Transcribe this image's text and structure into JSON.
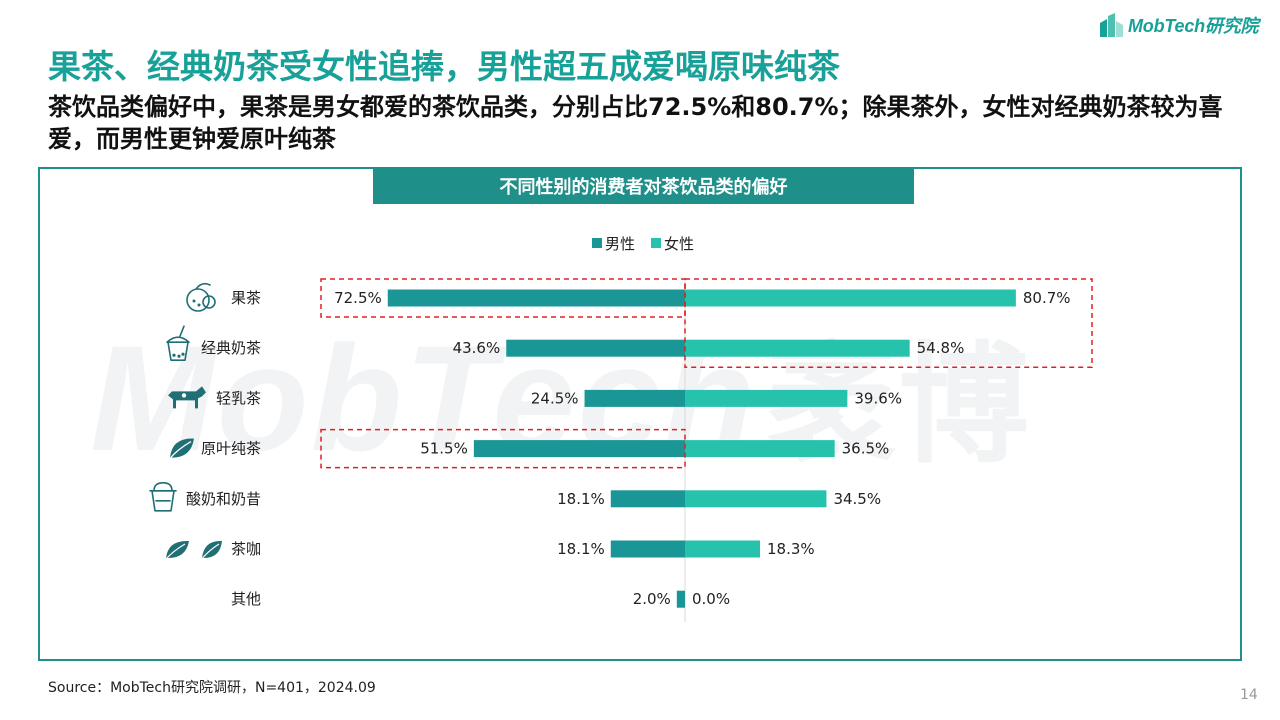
{
  "brand": {
    "logo_text": "MobTech研究院",
    "watermark_latin": "MobTech",
    "watermark_cn": "袤博"
  },
  "title": "果茶、经典奶茶受女性追捧，男性超五成爱喝原味纯茶",
  "subtitle": "茶饮品类偏好中，果茶是男女都爱的茶饮品类，分别占比72.5%和80.7%；除果茶外，女性对经典奶茶较为喜爱，而男性更钟爱原叶纯茶",
  "footer": {
    "source": "Source：MobTech研究院调研，N=401，2024.09",
    "page": "14"
  },
  "colors": {
    "male": "#1a9696",
    "female": "#27c2ac",
    "accent": "#17a198",
    "highlight": "#e02020"
  },
  "chart_data": {
    "type": "bar",
    "orientation": "horizontal-butterfly",
    "title": "不同性别的消费者对茶饮品类的偏好",
    "legend_position": "top-center",
    "unit": "%",
    "categories": [
      "果茶",
      "经典奶茶",
      "轻乳茶",
      "原叶纯茶",
      "酸奶和奶昔",
      "茶咖",
      "其他"
    ],
    "category_icons": [
      "citrus-fruit-icon",
      "bubble-tea-cup-icon",
      "cow-icon",
      "tea-leaf-icon",
      "yogurt-cup-icon",
      "tea-leaves-icon",
      ""
    ],
    "series": [
      {
        "name": "男性",
        "values": [
          72.5,
          43.6,
          24.5,
          51.5,
          18.1,
          18.1,
          2.0
        ],
        "labels": [
          "72.5%",
          "43.6%",
          "24.5%",
          "51.5%",
          "18.1%",
          "18.1%",
          "2.0%"
        ]
      },
      {
        "name": "女性",
        "values": [
          80.7,
          54.8,
          39.6,
          36.5,
          34.5,
          18.3,
          0.0
        ],
        "labels": [
          "80.7%",
          "54.8%",
          "39.6%",
          "36.5%",
          "34.5%",
          "18.3%",
          "0.0%"
        ]
      }
    ],
    "highlights": [
      {
        "series": "男性",
        "categories": [
          "果茶"
        ]
      },
      {
        "series": "女性",
        "categories": [
          "果茶",
          "经典奶茶"
        ]
      },
      {
        "series": "男性",
        "categories": [
          "原叶纯茶"
        ]
      }
    ]
  }
}
